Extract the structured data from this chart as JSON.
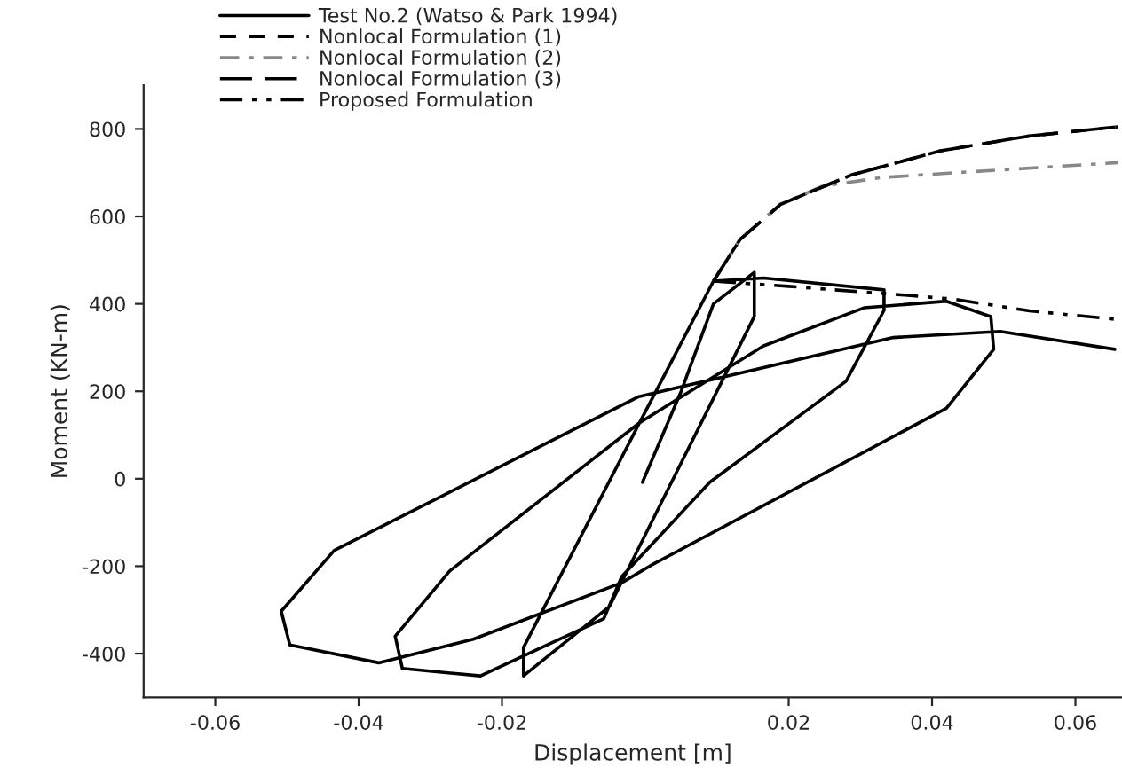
{
  "chart_data": {
    "type": "line",
    "xlabel": "Displacement [m]",
    "ylabel": "Moment (KN-m)",
    "xlim": [
      -0.07,
      0.0665
    ],
    "ylim": [
      -500,
      900
    ],
    "xticks": [
      -0.06,
      -0.04,
      -0.02,
      0.02,
      0.04,
      0.06
    ],
    "yticks": [
      -400,
      -200,
      0,
      200,
      400,
      600,
      800
    ],
    "grid": false,
    "legend": "top left",
    "series": [
      {
        "name": "Test No.2 (Watso & Park 1994)",
        "color": "#000000",
        "line_style": "solid",
        "x": [
          -0.0004,
          0.005,
          0.0095,
          0.0152,
          0.0152,
          -0.005,
          -0.017,
          -0.017,
          -0.001,
          0.0095,
          0.0165,
          0.0333,
          0.0333,
          0.028,
          0.009,
          -0.0033,
          -0.0058,
          -0.023,
          -0.0339,
          -0.0349,
          -0.0273,
          -0.0009,
          0.0165,
          0.0305,
          0.042,
          0.0482,
          0.0486,
          0.042,
          0.0008,
          -0.0033,
          -0.024,
          -0.0372,
          -0.0496,
          -0.0508,
          -0.0434,
          -0.0009,
          0.0346,
          0.0495,
          0.0655
        ],
        "values": [
          -8,
          200,
          400,
          472,
          371,
          -292,
          -451,
          -386,
          122,
          452,
          459,
          432,
          385,
          223,
          -8,
          -224,
          -320,
          -451,
          -434,
          -360,
          -211,
          127,
          304,
          391,
          406,
          371,
          296,
          161,
          -198,
          -238,
          -367,
          -421,
          -380,
          -303,
          -164,
          188,
          323,
          337,
          296
        ]
      },
      {
        "name": "Nonlocal Formulation (1)",
        "color": "#000000",
        "line_style": "dashed",
        "x": [
          0.0095,
          0.0132,
          0.0189,
          0.0288,
          0.0412,
          0.0536,
          0.066
        ],
        "values": [
          452,
          547,
          628,
          695,
          750,
          784,
          805
        ]
      },
      {
        "name": "Nonlocal Formulation (2)",
        "color": "#888888",
        "line_style": "dashdot",
        "x": [
          0.0095,
          0.0132,
          0.0189,
          0.0247,
          0.033,
          0.0453,
          0.066
        ],
        "values": [
          452,
          547,
          628,
          669,
          689,
          702,
          723
        ]
      },
      {
        "name": "Nonlocal Formulation (3)",
        "color": "#000000",
        "line_style": "longdash",
        "x": [
          0.0095,
          0.0132,
          0.0189,
          0.0288,
          0.0412,
          0.0536,
          0.066
        ],
        "values": [
          452,
          547,
          628,
          695,
          750,
          784,
          805
        ]
      },
      {
        "name": "Proposed Formulation",
        "color": "#000000",
        "line_style": "dashdotdot",
        "x": [
          0.0095,
          0.02,
          0.0346,
          0.0429,
          0.0536,
          0.066
        ],
        "values": [
          452,
          440,
          422,
          411,
          384,
          364
        ]
      }
    ]
  }
}
